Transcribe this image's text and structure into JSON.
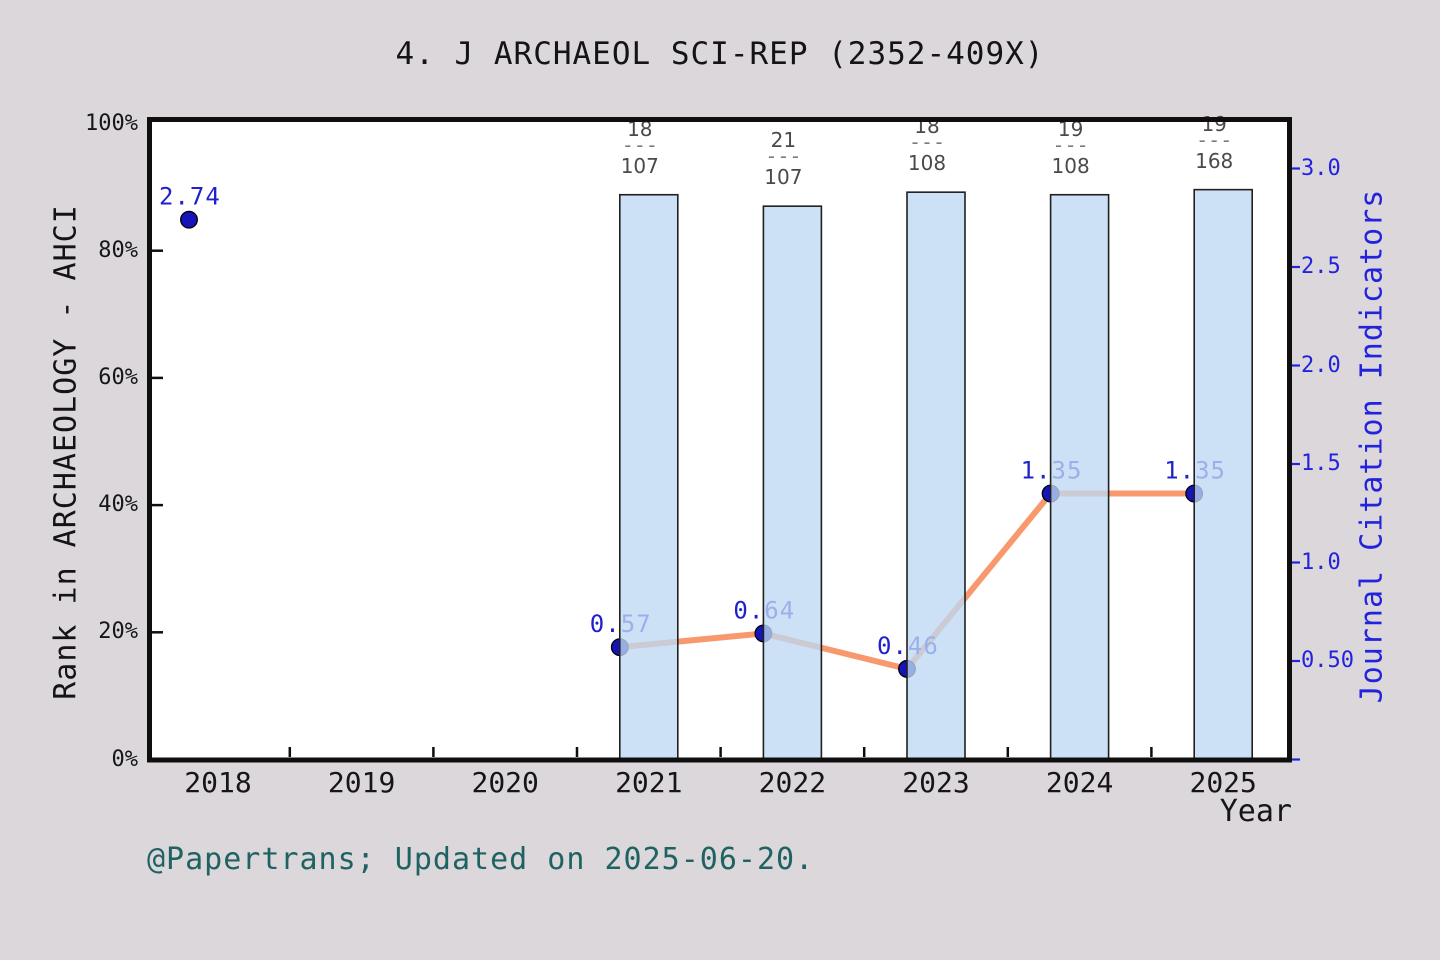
{
  "title": "4. J ARCHAEOL SCI-REP (2352-409X)",
  "footer": "@Papertrans; Updated on 2025-06-20.",
  "axes": {
    "x_label": "Year",
    "x_ticks": [
      "2018",
      "2019",
      "2020",
      "2021",
      "2022",
      "2023",
      "2024",
      "2025"
    ],
    "left_label": "Rank in ARCHAEOLOGY - AHCI",
    "left_ticks": [
      {
        "pct": 100,
        "label": "100%"
      },
      {
        "pct": 80,
        "label": "80%"
      },
      {
        "pct": 60,
        "label": "60%"
      },
      {
        "pct": 40,
        "label": "40%"
      },
      {
        "pct": 20,
        "label": "20%"
      },
      {
        "pct": 0,
        "label": "0%"
      }
    ],
    "right_label": "Journal Citation Indicators",
    "right_ticks": [
      {
        "value": 3.0,
        "label": "3.0"
      },
      {
        "value": 2.5,
        "label": "2.5"
      },
      {
        "value": 2.0,
        "label": "2.0"
      },
      {
        "value": 1.5,
        "label": "1.5"
      },
      {
        "value": 1.0,
        "label": "1.0"
      },
      {
        "value": 0.5,
        "label": "0.50"
      }
    ]
  },
  "chart_data": {
    "type": "bar",
    "title": "4. J ARCHAEOL SCI-REP (2352-409X)",
    "xlabel": "Year",
    "categories": [
      2018,
      2019,
      2020,
      2021,
      2022,
      2023,
      2024,
      2025
    ],
    "left_axis": {
      "label": "Rank in ARCHAEOLOGY - AHCI",
      "unit": "%",
      "range": [
        0,
        100
      ]
    },
    "right_axis": {
      "label": "Journal Citation Indicators",
      "range": [
        0,
        3.25
      ]
    },
    "grid": false,
    "legend": false,
    "series": [
      {
        "name": "rank-fraction-bars",
        "type": "bar",
        "axis": "left",
        "years": [
          2021,
          2022,
          2023,
          2024,
          2025
        ],
        "numerators": [
          18,
          21,
          18,
          19,
          19
        ],
        "denominators": [
          107,
          107,
          108,
          108,
          168
        ],
        "rank_labels": [
          "18/107",
          "21/107",
          "18/108",
          "19/108",
          "19/168"
        ],
        "bar_top_pct": [
          88.8,
          87.0,
          89.2,
          88.8,
          89.6
        ]
      },
      {
        "name": "jci-line",
        "type": "line",
        "axis": "right",
        "years": [
          2021,
          2022,
          2023,
          2024,
          2025
        ],
        "values": [
          0.57,
          0.64,
          0.46,
          1.35,
          1.35
        ],
        "labels": [
          "0.57",
          "0.64",
          "0.46",
          "1.35",
          "1.35"
        ]
      },
      {
        "name": "jci-point-2018",
        "type": "scatter",
        "axis": "right",
        "years": [
          2018
        ],
        "values": [
          2.74
        ],
        "labels": [
          "2.74"
        ]
      }
    ]
  },
  "colors": {
    "background": "#dbd7db",
    "plot_bg": "#ffffff",
    "spine": "#0f0f0f",
    "bar_fill": "#bed9f3",
    "bar_fill_opacity": 0.78,
    "bar_border": "#202020",
    "line_orange": "#f8996d",
    "marker_navy": "#1414b8",
    "marker_edge": "#000000",
    "value_label_blue": "#2121cc",
    "right_axis_blue": "#2323dd",
    "axis_text": "#161616",
    "fraction_text": "#4a4a4a",
    "fraction_dash": "#7c7c7c",
    "footer_teal": "#1f6262"
  }
}
